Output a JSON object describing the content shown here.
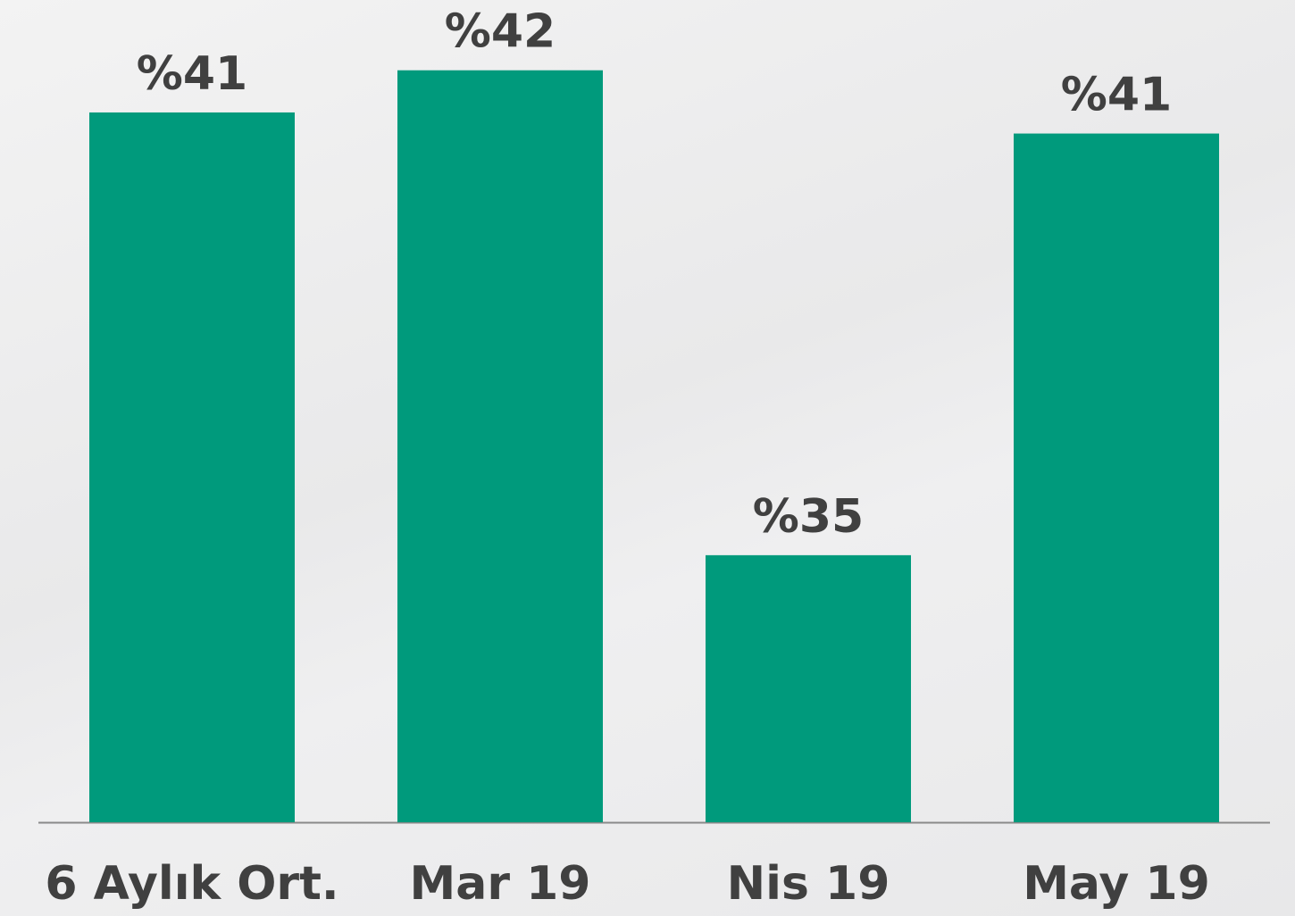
{
  "chart_data": {
    "type": "bar",
    "categories": [
      "6 Aylık Ort.",
      "Mar 19",
      "Nis 19",
      "May 19"
    ],
    "values": [
      41.3,
      41.9,
      35.0,
      41.0
    ],
    "value_labels": [
      "%41",
      "%42",
      "%35",
      "%41"
    ],
    "color": "#009a7c",
    "ylim": [
      31.2,
      42.9
    ]
  }
}
